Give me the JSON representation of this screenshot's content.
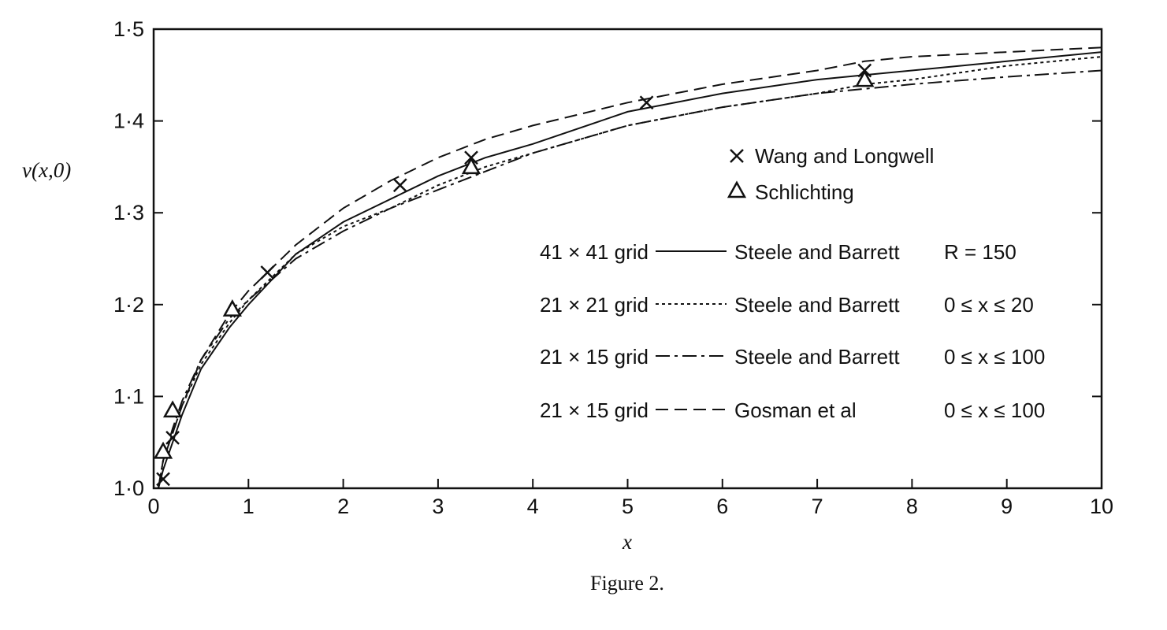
{
  "chart_data": {
    "type": "line",
    "title": "",
    "caption": "Figure 2.",
    "xlabel": "x",
    "ylabel": "v(x,0)",
    "xlim": [
      0,
      10
    ],
    "ylim": [
      1.0,
      1.5
    ],
    "xticks": [
      "0",
      "1",
      "2",
      "3",
      "4",
      "5",
      "6",
      "7",
      "8",
      "9",
      "10"
    ],
    "yticks": [
      "1·0",
      "1·1",
      "1·2",
      "1·3",
      "1·4",
      "1·5"
    ],
    "grid": false,
    "legend_position": "right",
    "series": [
      {
        "name": "Steele and Barrett",
        "grid_label": "41 × 41 grid",
        "range_label": "R = 150",
        "style": "solid",
        "x": [
          0.05,
          0.1,
          0.2,
          0.3,
          0.5,
          0.8,
          1.0,
          1.5,
          2.0,
          2.5,
          3.0,
          3.5,
          4.0,
          5.0,
          6.0,
          7.0,
          7.5,
          8.0,
          9.0,
          10.0
        ],
        "y": [
          1.0,
          1.02,
          1.05,
          1.08,
          1.13,
          1.175,
          1.2,
          1.255,
          1.29,
          1.315,
          1.34,
          1.36,
          1.375,
          1.41,
          1.43,
          1.445,
          1.45,
          1.455,
          1.465,
          1.475
        ]
      },
      {
        "name": "Steele and Barrett",
        "grid_label": "21 × 21 grid",
        "range_label": "0 ≤ x ≤ 20",
        "style": "dotted",
        "x": [
          0.05,
          0.1,
          0.2,
          0.3,
          0.5,
          0.8,
          1.0,
          1.5,
          2.0,
          2.5,
          3.0,
          3.5,
          4.0,
          5.0,
          6.0,
          7.0,
          7.5,
          8.0,
          9.0,
          10.0
        ],
        "y": [
          1.0,
          1.03,
          1.06,
          1.09,
          1.135,
          1.18,
          1.205,
          1.255,
          1.285,
          1.305,
          1.33,
          1.35,
          1.365,
          1.395,
          1.415,
          1.43,
          1.44,
          1.445,
          1.46,
          1.47
        ]
      },
      {
        "name": "Steele and Barrett",
        "grid_label": "21 × 15 grid",
        "range_label": "0 ≤ x ≤ 100",
        "style": "dashdot",
        "x": [
          0.05,
          0.1,
          0.2,
          0.3,
          0.5,
          0.8,
          1.0,
          1.5,
          2.0,
          2.5,
          3.0,
          3.5,
          4.0,
          5.0,
          6.0,
          7.0,
          7.5,
          8.0,
          9.0,
          10.0
        ],
        "y": [
          1.0,
          1.03,
          1.065,
          1.095,
          1.14,
          1.185,
          1.205,
          1.25,
          1.28,
          1.305,
          1.325,
          1.345,
          1.365,
          1.395,
          1.415,
          1.43,
          1.435,
          1.44,
          1.448,
          1.455
        ]
      },
      {
        "name": "Gosman et al",
        "grid_label": "21 × 15 grid",
        "range_label": "0 ≤ x ≤ 100",
        "style": "dashed",
        "x": [
          0.05,
          0.1,
          0.2,
          0.3,
          0.5,
          0.8,
          1.0,
          1.5,
          2.0,
          2.5,
          3.0,
          3.5,
          4.0,
          5.0,
          6.0,
          7.0,
          7.5,
          8.0,
          9.0,
          10.0
        ],
        "y": [
          1.0,
          1.03,
          1.06,
          1.09,
          1.14,
          1.19,
          1.215,
          1.265,
          1.305,
          1.335,
          1.36,
          1.38,
          1.395,
          1.42,
          1.44,
          1.455,
          1.465,
          1.47,
          1.475,
          1.48
        ]
      }
    ],
    "markers": [
      {
        "name": "Wang and Longwell",
        "symbol": "X",
        "x": [
          0.1,
          0.2,
          1.2,
          2.6,
          3.35,
          5.2,
          7.5
        ],
        "y": [
          1.01,
          1.055,
          1.235,
          1.33,
          1.36,
          1.42,
          1.455
        ]
      },
      {
        "name": "Schlichting",
        "symbol": "Δ",
        "x": [
          0.1,
          0.2,
          0.83,
          3.35,
          7.5
        ],
        "y": [
          1.04,
          1.085,
          1.195,
          1.35,
          1.445
        ]
      }
    ]
  }
}
